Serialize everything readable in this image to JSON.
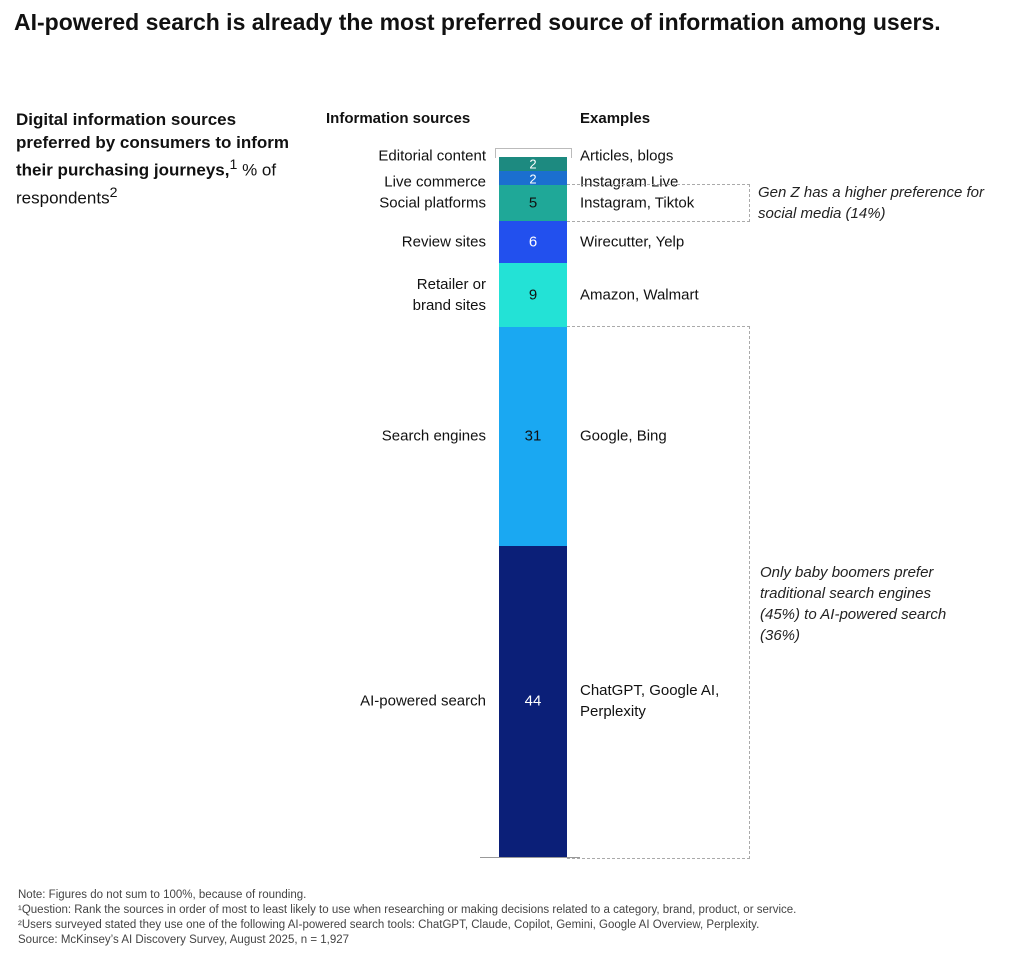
{
  "title": "AI-powered search is already the most preferred source of information among users.",
  "subtitle": {
    "bold": "Digital information sources preferred by consumers to inform their purchasing journeys,",
    "sup1": "1",
    "rest": " % of respondents",
    "sup2": "2"
  },
  "chart_data": {
    "type": "bar",
    "stacked": true,
    "column_headers": {
      "sources": "Information sources",
      "examples": "Examples"
    },
    "categories": [
      "Editorial content",
      "Live commerce",
      "Social platforms",
      "Review sites",
      "Retailer or\nbrand sites",
      "Search engines",
      "AI-powered search"
    ],
    "values": [
      2,
      2,
      5,
      6,
      9,
      31,
      44
    ],
    "examples": [
      "Articles, blogs",
      "Instagram Live",
      "Instagram, Tiktok",
      "Wirecutter, Yelp",
      "Amazon, Walmart",
      "Google, Bing",
      "ChatGPT, Google AI,\nPerplexity"
    ],
    "colors": [
      "#1d8a80",
      "#1b6fcf",
      "#1fa898",
      "#2250ee",
      "#23e2d6",
      "#1aa8f2",
      "#0b1f78"
    ],
    "value_colors": [
      "#fff",
      "#fff",
      "#111",
      "#fff",
      "#111",
      "#111",
      "#fff"
    ],
    "annotations": [
      "Gen Z has a higher preference for social media (14%)",
      "Only baby boomers prefer traditional search engines (45%) to AI-powered search (36%)"
    ]
  },
  "notes": [
    "Note: Figures do not sum to 100%, because of rounding.",
    "¹Question: Rank the sources in order of most to least likely to use when researching or making decisions related to a category, brand, product, or service.",
    "²Users surveyed stated they use one of the following AI-powered search tools: ChatGPT, Claude, Copilot, Gemini, Google AI Overview, Perplexity.",
    "Source: McKinsey’s AI Discovery Survey, August 2025, n = 1,927"
  ]
}
